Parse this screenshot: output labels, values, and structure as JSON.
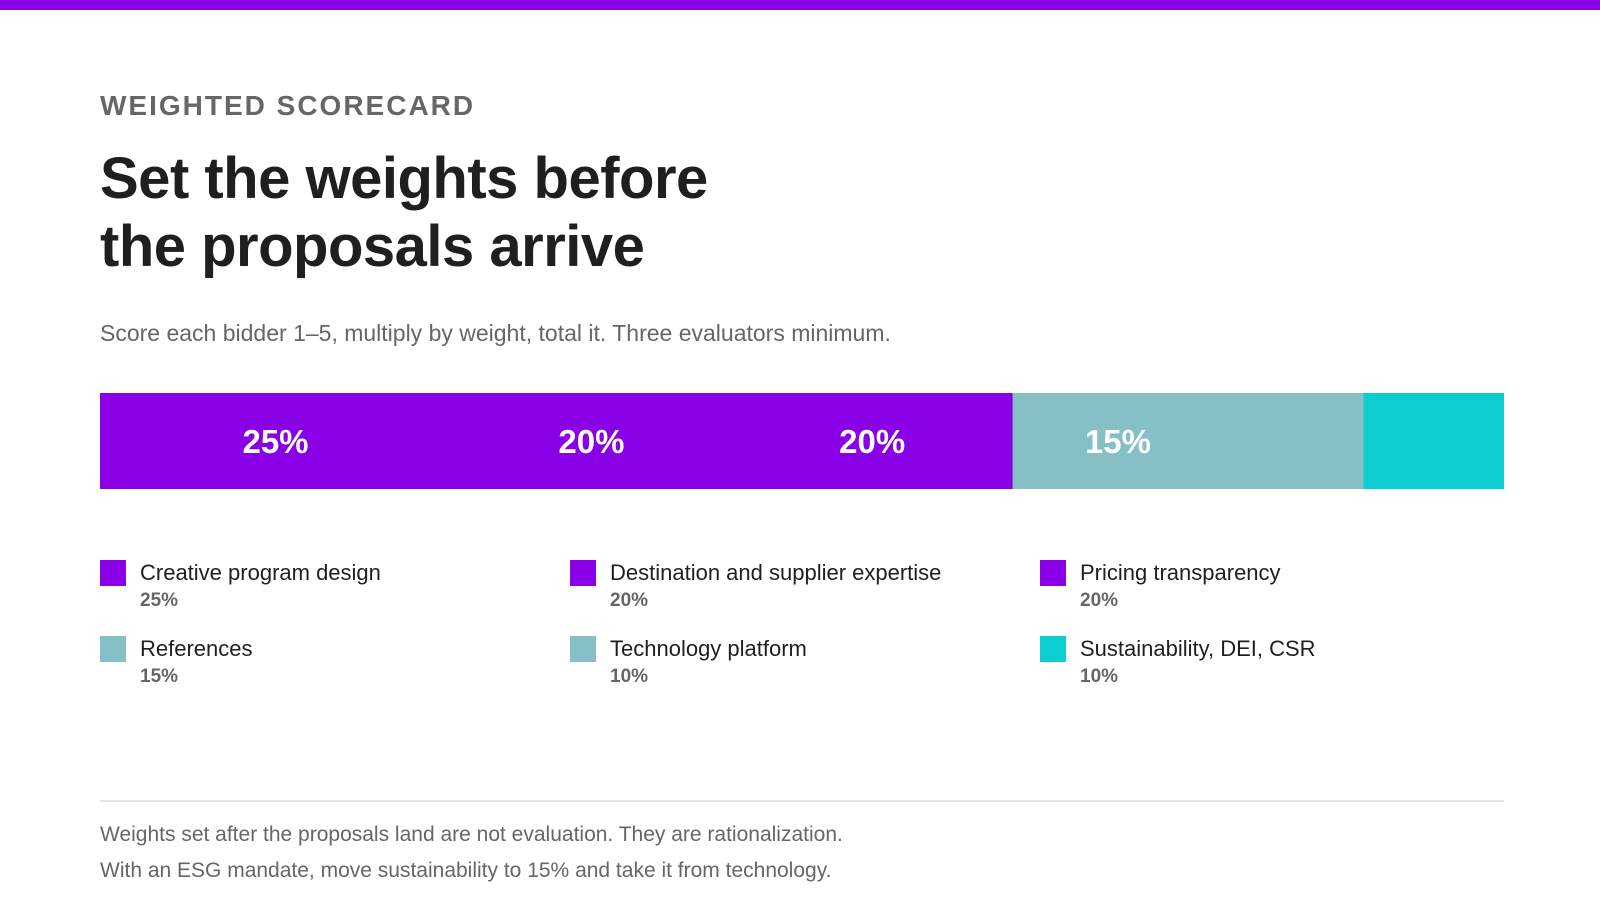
{
  "header": {
    "eyebrow": "WEIGHTED SCORECARD",
    "title_lines": [
      "Set the weights before",
      "the proposals arrive"
    ],
    "subtitle": "Score each bidder 1–5, multiply by weight, total it. Three evaluators minimum."
  },
  "colors": {
    "accent": "#8A00E6",
    "teal_gray": "#86BFC6",
    "cyan": "#0CCDD0",
    "text_dark": "#1f1f1f",
    "text_muted": "#666666"
  },
  "chart_data": {
    "type": "bar",
    "orientation": "horizontal-stacked-100",
    "categories": [
      "Creative program design",
      "Destination and supplier expertise",
      "Pricing transparency",
      "References",
      "Technology platform",
      "Sustainability, DEI, CSR"
    ],
    "values": [
      25,
      20,
      20,
      15,
      10,
      10
    ],
    "value_labels": [
      "25%",
      "20%",
      "20%",
      "15%",
      "",
      ""
    ],
    "legend_values": [
      "25%",
      "20%",
      "20%",
      "15%",
      "10%",
      "10%"
    ],
    "colors": [
      "#8A00E6",
      "#8A00E6",
      "#8A00E6",
      "#86BFC6",
      "#86BFC6",
      "#0CCDD0"
    ],
    "xlim": [
      0,
      100
    ],
    "unit": "%",
    "legend_position": "bottom",
    "grid": false
  },
  "footnotes": [
    "Weights set after the proposals land are not evaluation. They are rationalization.",
    "With an ESG mandate, move sustainability to 15% and take it from technology."
  ]
}
